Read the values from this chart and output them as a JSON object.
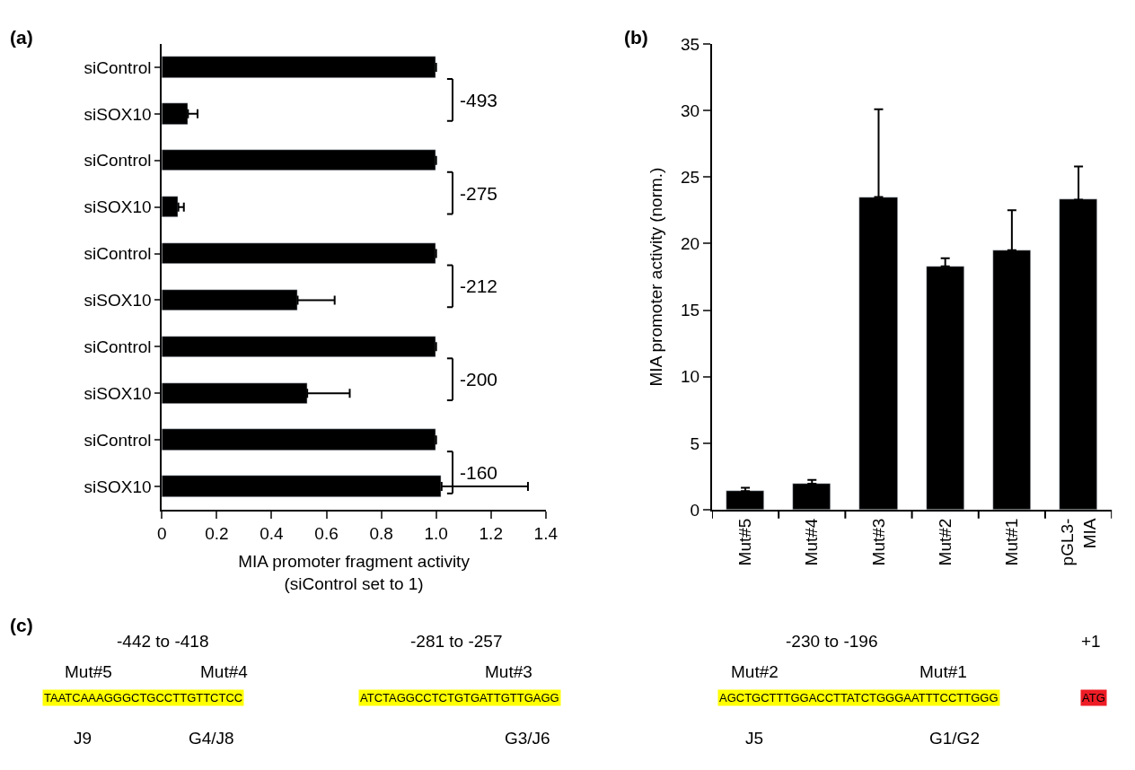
{
  "chart_data": [
    {
      "type": "bar",
      "title": "(a)",
      "orientation": "horizontal",
      "categories": [
        "siControl",
        "siSOX10",
        "siControl",
        "siSOX10",
        "siControl",
        "siSOX10",
        "siControl",
        "siSOX10",
        "siControl",
        "siSOX10"
      ],
      "values": [
        1.0,
        0.095,
        1.0,
        0.06,
        1.0,
        0.495,
        1.0,
        0.53,
        1.0,
        1.02
      ],
      "errors": [
        null,
        [
          0.095,
          0.13
        ],
        null,
        [
          0.06,
          0.08
        ],
        null,
        [
          0.495,
          0.63
        ],
        null,
        [
          0.53,
          0.685
        ],
        null,
        [
          1.02,
          1.335
        ]
      ],
      "color": "#000000",
      "xlim": [
        0,
        1.4
      ],
      "xticks": [
        0,
        0.2,
        0.4,
        0.6,
        0.8,
        {
          "value": 1.0,
          "label": "1.0"
        },
        1.2,
        1.4
      ],
      "xlabel": "MIA promoter fragment activity\n(siControl set to 1)",
      "annotations": [
        "-493",
        "-275",
        "-212",
        "-200",
        "-160"
      ]
    },
    {
      "type": "bar",
      "title": "(b)",
      "categories": [
        "Mut#5",
        "Mut#4",
        "Mut#3",
        "Mut#2",
        "Mut#1",
        "pGL3-\nMIA"
      ],
      "values": [
        1.4,
        1.95,
        23.5,
        18.3,
        19.5,
        23.3
      ],
      "errors": [
        [
          1.4,
          1.65
        ],
        [
          1.95,
          2.25
        ],
        [
          23.5,
          30.1
        ],
        [
          18.3,
          18.9
        ],
        [
          19.5,
          22.5
        ],
        [
          23.3,
          25.8
        ]
      ],
      "color": "#000000",
      "ylim": [
        0,
        35
      ],
      "yticks": [
        0,
        5,
        10,
        15,
        20,
        25,
        30,
        35
      ],
      "ylabel": "MIA promoter activity (norm.)"
    },
    {
      "type": "other",
      "title": "(c)",
      "annotations": [
        "-442 to -418",
        "-281 to -257",
        "-230 to -196",
        "+1",
        "Mut#5",
        "Mut#4",
        "Mut#3",
        "Mut#2",
        "Mut#1",
        "TAATCAAAGGGCTGCCTTGTTCTCC",
        "ATCTAGGCCTCTGTGATTGTTGAGG",
        "AGCTGCTTTGGACCTTATCTGGGAATTTCCTTGGG",
        "ATG",
        "J9",
        "G4/J8",
        "G3/J6",
        "J5",
        "G1/G2"
      ]
    }
  ]
}
